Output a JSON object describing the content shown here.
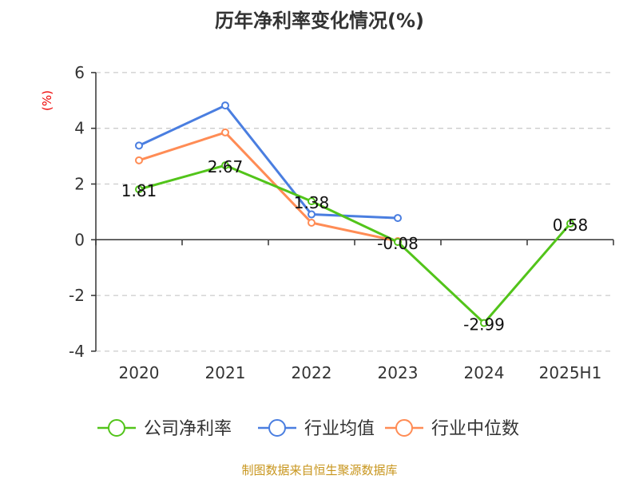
{
  "chart_data": {
    "type": "line",
    "title": "历年净利率变化情况(%)",
    "ylabel": "(%)",
    "xlabel": "",
    "categories": [
      "2020",
      "2021",
      "2022",
      "2023",
      "2024",
      "2025H1"
    ],
    "ylim": [
      -4,
      6
    ],
    "yticks": [
      -4,
      -2,
      0,
      2,
      4,
      6
    ],
    "grid": true,
    "legend_position": "bottom",
    "series": [
      {
        "name": "公司净利率",
        "color": "#52c41a",
        "values": [
          1.81,
          2.67,
          1.38,
          -0.08,
          -2.99,
          0.58
        ],
        "show_labels": true
      },
      {
        "name": "行业均值",
        "color": "#4a7ee0",
        "values": [
          3.38,
          4.82,
          0.91,
          0.78,
          null,
          null
        ],
        "show_labels": false
      },
      {
        "name": "行业中位数",
        "color": "#ff8c55",
        "values": [
          2.85,
          3.85,
          0.61,
          -0.05,
          null,
          null
        ],
        "show_labels": false
      }
    ]
  },
  "source": "制图数据来自恒生聚源数据库"
}
